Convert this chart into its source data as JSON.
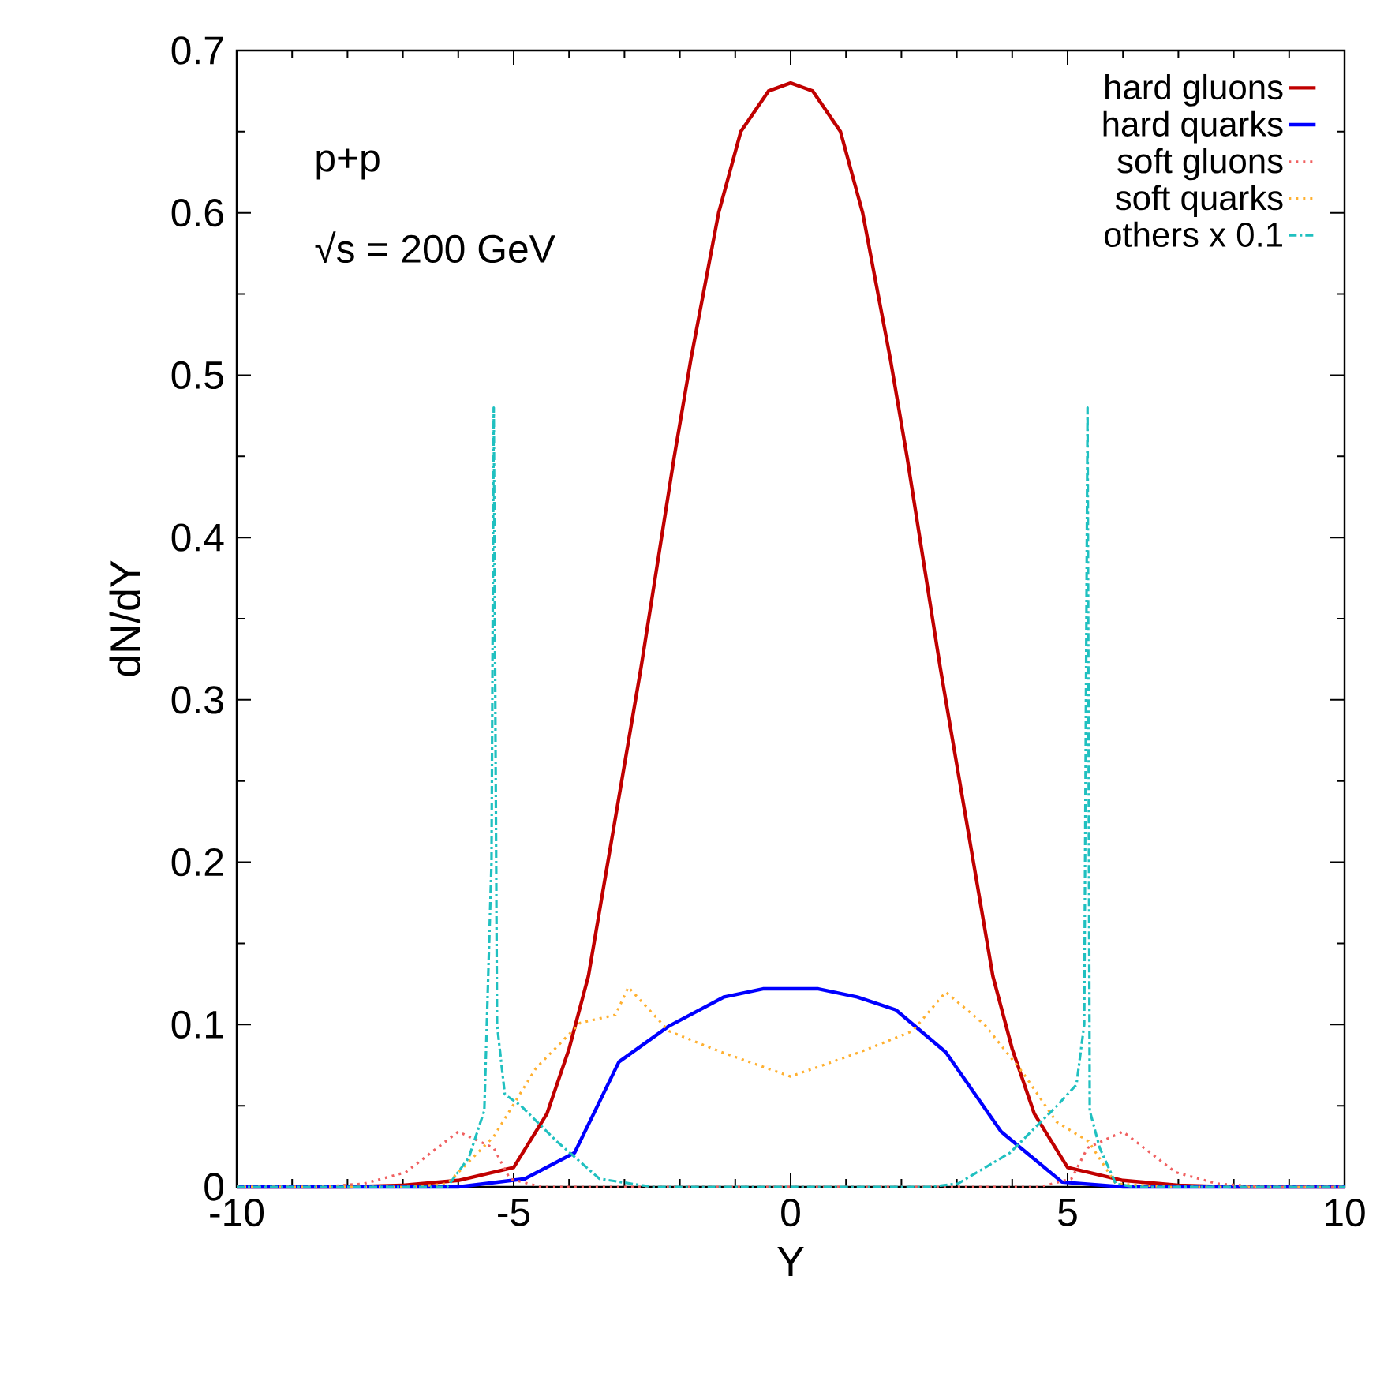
{
  "chart_data": {
    "type": "line",
    "xlabel": "Y",
    "ylabel": "dN/dY",
    "annotations": [
      "p+p",
      "√s = 200 GeV"
    ],
    "xlim": [
      -10,
      10
    ],
    "ylim": [
      0,
      0.7
    ],
    "xticks": [
      -10,
      -5,
      0,
      5,
      10
    ],
    "yticks": [
      0,
      0.1,
      0.2,
      0.3,
      0.4,
      0.5,
      0.6,
      0.7
    ],
    "legend": "top right",
    "series": [
      {
        "name": "hard gluons",
        "color": "#c00000",
        "line_style": "solid",
        "x": [
          -10,
          -8,
          -7,
          -6,
          -5,
          -4.4,
          -4,
          -3.65,
          -3.4,
          -3,
          -2.7,
          -2.1,
          -1.8,
          -1.3,
          -0.9,
          -0.4,
          0,
          0.4,
          0.9,
          1.3,
          1.8,
          2.1,
          2.7,
          3,
          3.4,
          3.65,
          4,
          4.4,
          5,
          6,
          7,
          8,
          10
        ],
        "values": [
          0,
          0,
          0.001,
          0.004,
          0.012,
          0.045,
          0.085,
          0.13,
          0.18,
          0.26,
          0.32,
          0.45,
          0.51,
          0.6,
          0.65,
          0.675,
          0.68,
          0.675,
          0.65,
          0.6,
          0.51,
          0.45,
          0.32,
          0.26,
          0.18,
          0.13,
          0.085,
          0.045,
          0.012,
          0.004,
          0.001,
          0,
          0
        ]
      },
      {
        "name": "hard quarks",
        "color": "#0000ff",
        "line_style": "solid",
        "x": [
          -10,
          -6,
          -4.8,
          -3.9,
          -3.1,
          -2.2,
          -1.2,
          -0.5,
          0,
          0.5,
          1.2,
          1.9,
          2.8,
          3.8,
          4.9,
          6,
          10
        ],
        "values": [
          0,
          0,
          0.005,
          0.021,
          0.077,
          0.099,
          0.117,
          0.122,
          0.122,
          0.122,
          0.117,
          0.109,
          0.083,
          0.034,
          0.003,
          0,
          0
        ]
      },
      {
        "name": "soft gluons",
        "color": "#f06060",
        "line_style": "dotted",
        "x": [
          -10,
          -8.5,
          -7.7,
          -6.95,
          -6,
          -5.36,
          -5.07,
          -4.5,
          0,
          4.5,
          5.07,
          5.36,
          6,
          6.95,
          7.7,
          8.5,
          10
        ],
        "values": [
          0,
          0,
          0.002,
          0.009,
          0.034,
          0.024,
          0.005,
          0,
          0,
          0,
          0.005,
          0.024,
          0.034,
          0.009,
          0.002,
          0,
          0
        ]
      },
      {
        "name": "soft quarks",
        "color": "#ffb030",
        "line_style": "dotted",
        "x": [
          -10,
          -6.8,
          -6.2,
          -5.36,
          -4.6,
          -3.8,
          -3.16,
          -2.93,
          -2.2,
          -1.25,
          0,
          1.25,
          2.2,
          2.8,
          3.5,
          4.2,
          4.8,
          5.38,
          5.87,
          6.8,
          10
        ],
        "values": [
          0,
          0,
          0.002,
          0.031,
          0.073,
          0.101,
          0.106,
          0.123,
          0.096,
          0.083,
          0.068,
          0.083,
          0.096,
          0.12,
          0.1,
          0.07,
          0.04,
          0.028,
          0.002,
          0,
          0
        ]
      },
      {
        "name": "others x 0.1",
        "color": "#20c0c0",
        "line_style": "dashdot",
        "x": [
          -10,
          -6.2,
          -5.81,
          -5.53,
          -5.4,
          -5.36,
          -5.3,
          -5.16,
          -4.87,
          -4.22,
          -3.45,
          -2.5,
          2.5,
          3.02,
          3.96,
          4.81,
          5.16,
          5.3,
          5.36,
          5.4,
          5.58,
          5.87,
          6.2,
          10
        ],
        "values": [
          0,
          0,
          0.018,
          0.047,
          0.2,
          0.48,
          0.1,
          0.057,
          0.05,
          0.028,
          0.005,
          0,
          0,
          0.002,
          0.021,
          0.05,
          0.063,
          0.1,
          0.48,
          0.047,
          0.024,
          0.002,
          0,
          0
        ]
      }
    ]
  }
}
